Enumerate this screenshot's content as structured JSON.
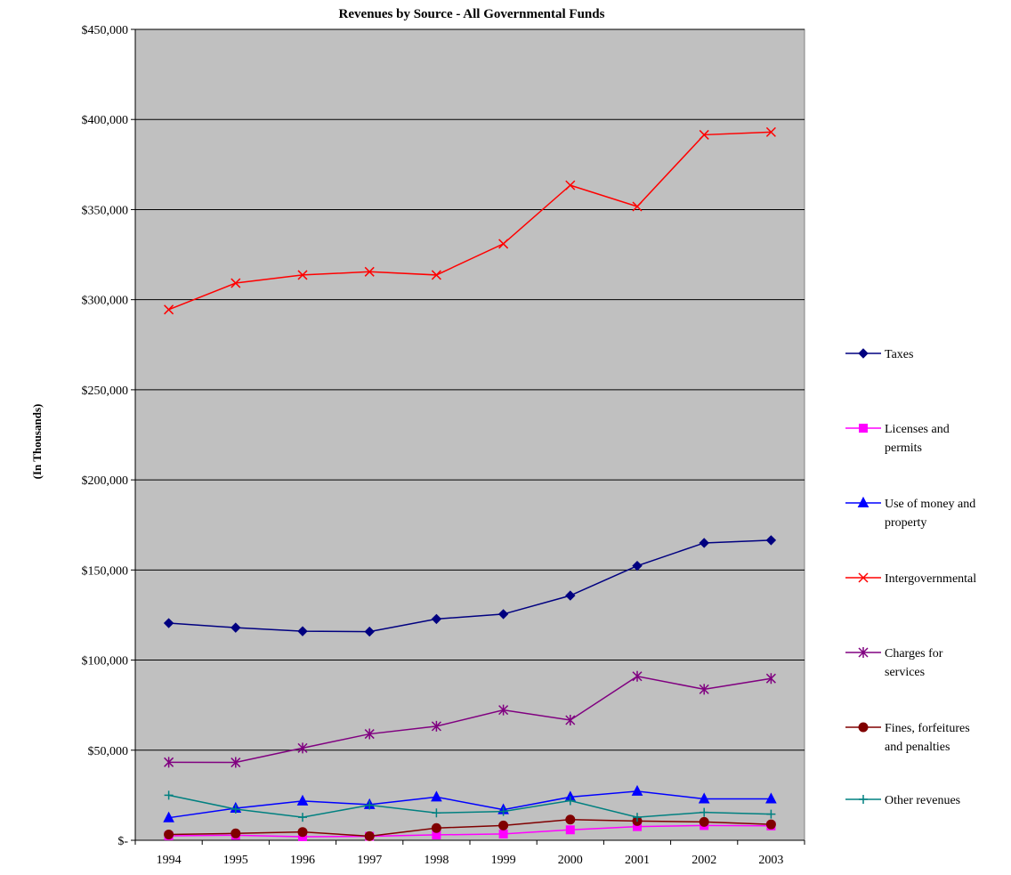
{
  "chart_data": {
    "type": "line",
    "title": "Revenues by Source - All Governmental Funds",
    "ylabel": "(In Thousands)",
    "xlabel": "",
    "ylim": [
      0,
      450000
    ],
    "grid": true,
    "legend_position": "right",
    "categories": [
      "1994",
      "1995",
      "1996",
      "1997",
      "1998",
      "1999",
      "2000",
      "2001",
      "2002",
      "2003"
    ],
    "y_ticks": [
      0,
      50000,
      100000,
      150000,
      200000,
      250000,
      300000,
      350000,
      400000,
      450000
    ],
    "y_tick_labels": [
      "$-",
      "$50,000",
      "$100,000",
      "$150,000",
      "$200,000",
      "$250,000",
      "$300,000",
      "$350,000",
      "$400,000",
      "$450,000"
    ],
    "series": [
      {
        "name": "Taxes",
        "color": "#000080",
        "marker": "diamond",
        "values": [
          120500,
          118000,
          116000,
          115800,
          122800,
          125500,
          135800,
          152300,
          165000,
          166500
        ]
      },
      {
        "name": "Licenses and permits",
        "color": "#ff00ff",
        "marker": "square",
        "values": [
          2500,
          2800,
          2000,
          2200,
          3000,
          3500,
          5800,
          7600,
          8200,
          8000
        ]
      },
      {
        "name": "Use of money and property",
        "color": "#0000ff",
        "marker": "triangle",
        "values": [
          12500,
          17800,
          21800,
          19800,
          24000,
          17000,
          24000,
          27200,
          23000,
          23000
        ]
      },
      {
        "name": "Intergovernmental",
        "color": "#ff0000",
        "marker": "x",
        "values": [
          294500,
          309200,
          313700,
          315500,
          313700,
          331000,
          363500,
          351700,
          391500,
          393000
        ]
      },
      {
        "name": "Charges for services",
        "color": "#800080",
        "marker": "star",
        "values": [
          43300,
          43200,
          51200,
          59000,
          63300,
          72300,
          66700,
          91000,
          83800,
          89800
        ]
      },
      {
        "name": "Fines, forfeitures and penalties",
        "color": "#800000",
        "marker": "circle",
        "values": [
          3200,
          3800,
          4600,
          2300,
          6800,
          8200,
          11500,
          10700,
          10200,
          8800
        ]
      },
      {
        "name": "Other revenues",
        "color": "#008080",
        "marker": "plus",
        "values": [
          25000,
          17300,
          12800,
          19500,
          15200,
          16000,
          22000,
          12800,
          15500,
          14500
        ]
      }
    ],
    "legend_labels": [
      [
        "Taxes"
      ],
      [
        "Licenses and",
        "permits"
      ],
      [
        "Use of money and",
        "property"
      ],
      [
        "Intergovernmental"
      ],
      [
        "Charges for",
        "services"
      ],
      [
        "Fines, forfeitures",
        "and penalties"
      ],
      [
        "Other revenues"
      ]
    ]
  }
}
